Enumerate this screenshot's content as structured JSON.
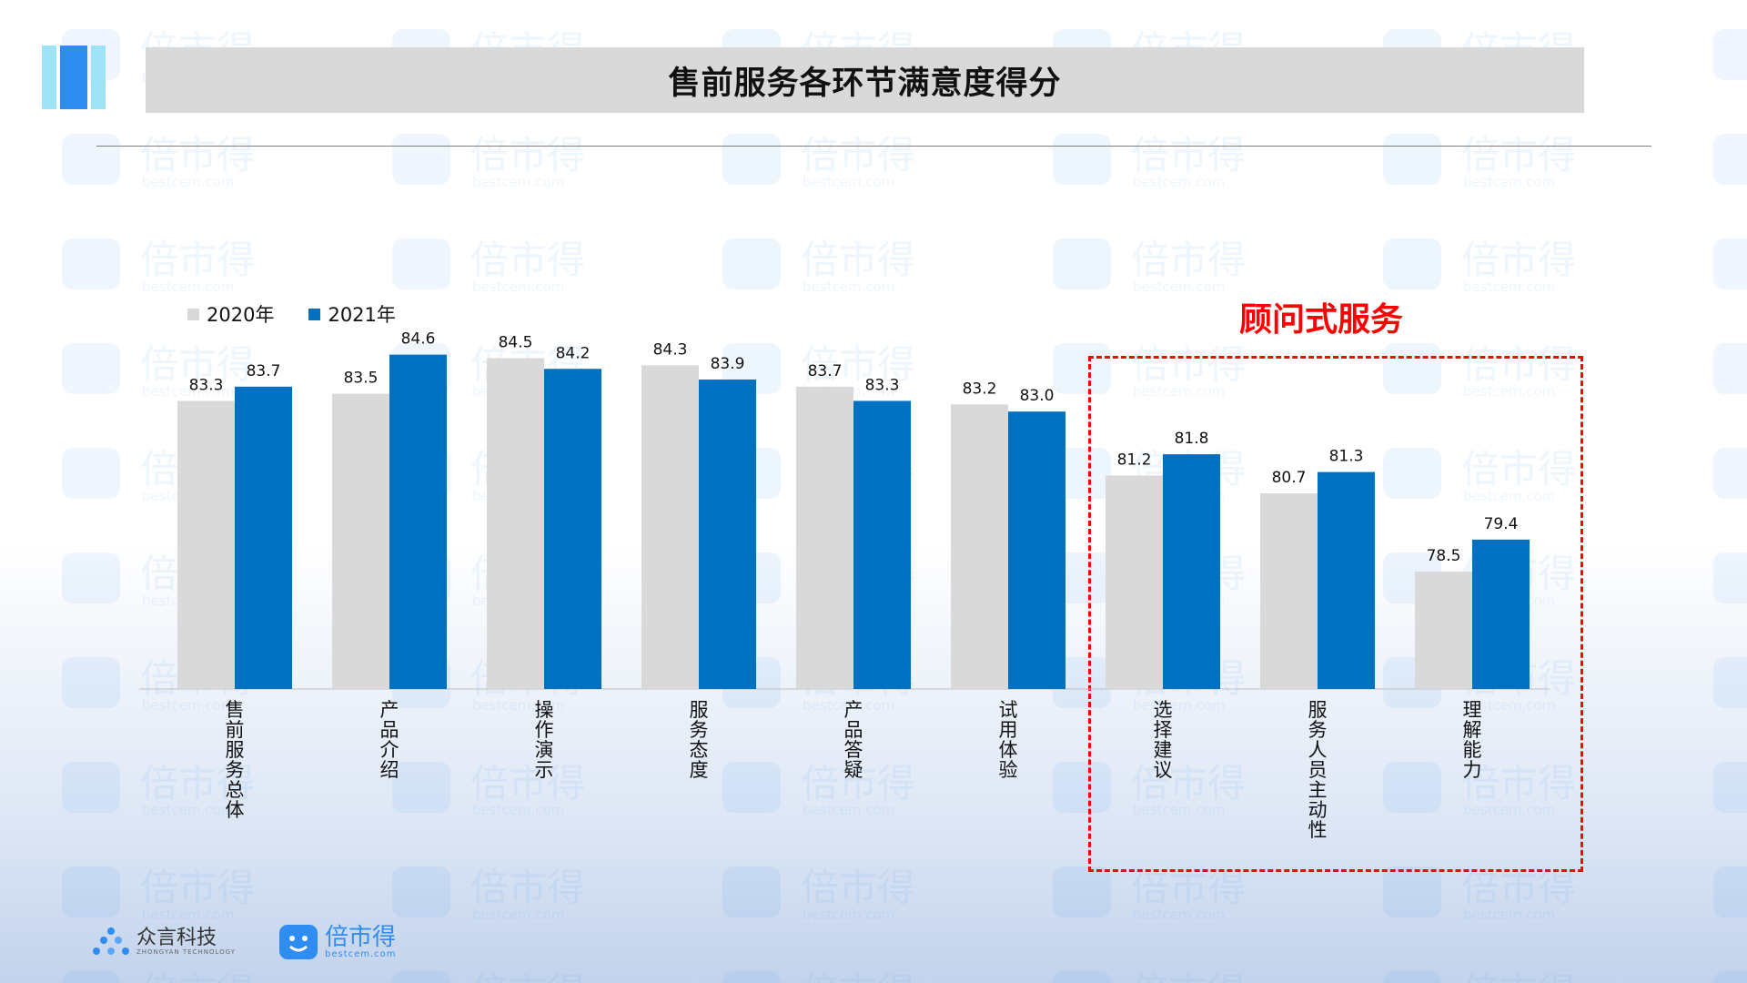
{
  "title": "售前服务各环节满意度得分",
  "highlight_label": "顾问式服务",
  "colors": {
    "series2020": "#d9d9d9",
    "series2021": "#0070c0",
    "highlight": "#ff0000",
    "accent": "#2f8cf0"
  },
  "watermark": {
    "text": "倍市得",
    "sub": "bestcem.com"
  },
  "footer": {
    "brand1_name": "众言科技",
    "brand1_sub": "ZHONGYAN TECHNOLOGY",
    "brand2_name": "倍市得",
    "brand2_sub": "bestcem.com"
  },
  "chart_data": {
    "type": "bar",
    "categories": [
      "售前服务总体",
      "产品介绍",
      "操作演示",
      "服务态度",
      "产品答疑",
      "试用体验",
      "选择建议",
      "服务人员主动性",
      "理解能力"
    ],
    "series": [
      {
        "name": "2020年",
        "values": [
          83.3,
          83.5,
          84.5,
          84.3,
          83.7,
          83.2,
          81.2,
          80.7,
          78.5
        ]
      },
      {
        "name": "2021年",
        "values": [
          83.7,
          84.6,
          84.2,
          83.9,
          83.3,
          83.0,
          81.8,
          81.3,
          79.4
        ]
      }
    ],
    "ylim": [
      75.2,
      85
    ],
    "grid": false,
    "legend": "top-left",
    "value_labels": [
      "83.3",
      "83.5",
      "84.5",
      "84.3",
      "83.7",
      "83.2",
      "81.2",
      "80.7",
      "78.5",
      "83.7",
      "84.6",
      "84.2",
      "83.9",
      "83.3",
      "83.0",
      "81.8",
      "81.3",
      "79.4"
    ]
  }
}
